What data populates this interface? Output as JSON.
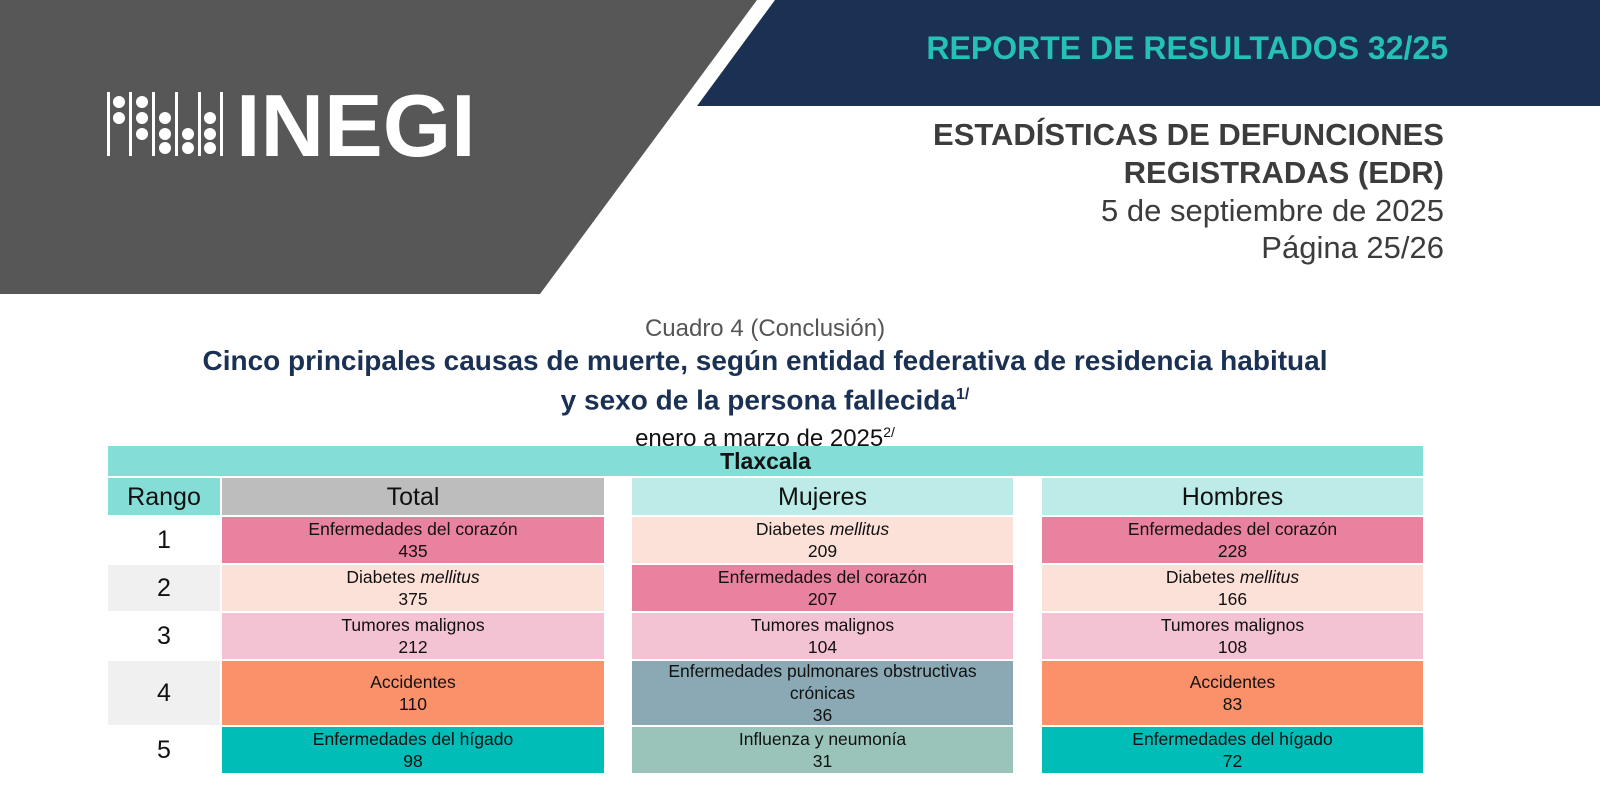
{
  "header": {
    "report": "REPORTE DE RESULTADOS 32/25",
    "logo": "INEGI",
    "title_lines": [
      "ESTADÍSTICAS DE DEFUNCIONES",
      "REGISTRADAS (EDR)"
    ],
    "date": "5 de septiembre de 2025",
    "page": "Página 25/26"
  },
  "table": {
    "label": "Cuadro 4 (Conclusión)",
    "title_lines": [
      "Cinco principales causas de muerte, según entidad federativa de residencia habitual",
      "y sexo de la persona fallecida"
    ],
    "title_note": "1/",
    "period": "enero a marzo de 2025",
    "period_note": "2/",
    "state": "Tlaxcala",
    "columns": [
      "Rango",
      "Total",
      "Mujeres",
      "Hombres"
    ],
    "rows": [
      {
        "rank": 1,
        "cells": [
          {
            "cause": "Enfermedades del corazón",
            "value": 435,
            "color": "#e8829f"
          },
          {
            "cause": "Diabetes",
            "cause_italic": "mellitus",
            "value": 209,
            "color": "#fce1d9"
          },
          {
            "cause": "Enfermedades del corazón",
            "value": 228,
            "color": "#e8829f"
          }
        ]
      },
      {
        "rank": 2,
        "cells": [
          {
            "cause": "Diabetes",
            "cause_italic": "mellitus",
            "value": 375,
            "color": "#fce1d9"
          },
          {
            "cause": "Enfermedades del corazón",
            "value": 207,
            "color": "#e8829f"
          },
          {
            "cause": "Diabetes",
            "cause_italic": "mellitus",
            "value": 166,
            "color": "#fce1d9"
          }
        ]
      },
      {
        "rank": 3,
        "cells": [
          {
            "cause": "Tumores malignos",
            "value": 212,
            "color": "#f4c3d3"
          },
          {
            "cause": "Tumores malignos",
            "value": 104,
            "color": "#f4c3d3"
          },
          {
            "cause": "Tumores malignos",
            "value": 108,
            "color": "#f4c3d3"
          }
        ]
      },
      {
        "rank": 4,
        "cells": [
          {
            "cause": "Accidentes",
            "value": 110,
            "color": "#fb916b"
          },
          {
            "cause": "Enfermedades pulmonares obstructivas crónicas",
            "value": 36,
            "color": "#8aa9b5"
          },
          {
            "cause": "Accidentes",
            "value": 83,
            "color": "#fb916b"
          }
        ]
      },
      {
        "rank": 5,
        "cells": [
          {
            "cause": "Enfermedades del hígado",
            "value": 98,
            "color": "#00beb7"
          },
          {
            "cause": "Influenza y neumonía",
            "value": 31,
            "color": "#9ac4ba"
          },
          {
            "cause": "Enfermedades del hígado",
            "value": 72,
            "color": "#00beb7"
          }
        ]
      }
    ]
  }
}
